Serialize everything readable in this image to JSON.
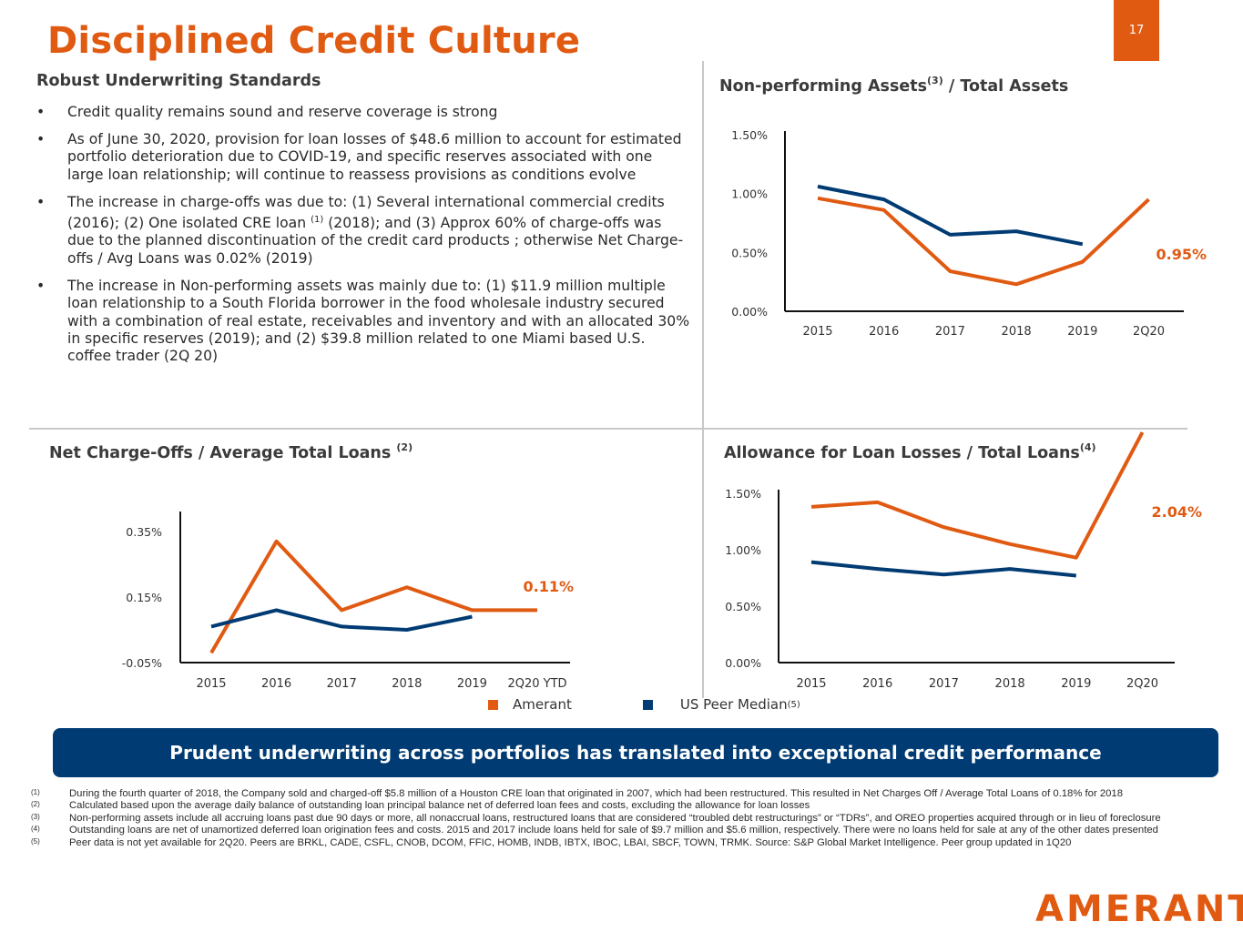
{
  "header": {
    "title": "Disciplined Credit Culture",
    "page_number": "17",
    "accent_color": "#e05a12"
  },
  "left_section": {
    "title": "Robust Underwriting Standards",
    "bullets": [
      {
        "text": "Credit quality remains sound and reserve coverage is strong"
      },
      {
        "text": "As of June 30, 2020, provision for loan losses of $48.6 million to account for estimated portfolio deterioration due to COVID-19, and specific reserves associated with one large loan relationship; will continue to reassess provisions as conditions evolve"
      },
      {
        "text_a": "The increase in charge-offs was due to: (1) Several international commercial credits (2016); (2) One isolated CRE loan",
        "sup": "(1)",
        "text_b": "(2018); and (3) Approx 60% of charge-offs was due to the planned discontinuation of the credit card products ; otherwise Net Charge-offs / Avg Loans was 0.02% (2019)"
      },
      {
        "text": "The increase in Non-performing assets was mainly due to: (1) $11.9 million multiple loan relationship to a South Florida borrower in the food wholesale industry secured with a combination of real estate, receivables and inventory and with an allocated 30% in specific reserves (2019); and (2) $39.8 million related to one Miami based U.S. coffee trader (2Q 20)"
      }
    ],
    "bullet_glyph": "•"
  },
  "chart_titles": {
    "npa": {
      "text": "Non-performing Assets",
      "sup": "(3)",
      "suffix": " / Total Assets"
    },
    "nco": {
      "text": "Net Charge-Offs / Average Total Loans",
      "sup": "(2)"
    },
    "all": {
      "text": "Allowance for Loan Losses / Total Loans",
      "sup": "(4)"
    }
  },
  "chart_data": [
    {
      "id": "npa",
      "type": "line",
      "categories": [
        "2015",
        "2016",
        "2017",
        "2018",
        "2019",
        "2Q20"
      ],
      "yticks": [
        "1.50%",
        "1.00%",
        "0.50%",
        "0.00%"
      ],
      "ylim": [
        0,
        1.5
      ],
      "series": [
        {
          "name": "Amerant",
          "color": "#e05a12",
          "values": [
            0.96,
            0.86,
            0.34,
            0.23,
            0.42,
            0.95
          ]
        },
        {
          "name": "US Peer Median",
          "color": "#003b73",
          "values": [
            1.06,
            0.95,
            0.65,
            0.68,
            0.57,
            null
          ]
        }
      ],
      "callout": "0.95%",
      "grid": false
    },
    {
      "id": "nco",
      "type": "line",
      "categories": [
        "2015",
        "2016",
        "2017",
        "2018",
        "2019",
        "2Q20 YTD"
      ],
      "yticks": [
        "0.35%",
        "0.15%",
        "-0.05%"
      ],
      "ylim": [
        -0.05,
        0.4
      ],
      "series": [
        {
          "name": "Amerant",
          "color": "#e05a12",
          "values": [
            -0.02,
            0.32,
            0.11,
            0.18,
            0.11,
            0.11
          ]
        },
        {
          "name": "US Peer Median",
          "color": "#003b73",
          "values": [
            0.06,
            0.11,
            0.06,
            0.05,
            0.09,
            null
          ]
        }
      ],
      "callout": "0.11%",
      "grid": false
    },
    {
      "id": "all",
      "type": "line",
      "categories": [
        "2015",
        "2016",
        "2017",
        "2018",
        "2019",
        "2Q20"
      ],
      "yticks": [
        "1.50%",
        "1.00%",
        "0.50%",
        "0.00%"
      ],
      "ylim": [
        0,
        1.5
      ],
      "series": [
        {
          "name": "Amerant",
          "color": "#e05a12",
          "values": [
            1.38,
            1.42,
            1.2,
            1.05,
            0.93,
            2.04
          ]
        },
        {
          "name": "US Peer Median",
          "color": "#003b73",
          "values": [
            0.89,
            0.83,
            0.78,
            0.83,
            0.77,
            null
          ]
        }
      ],
      "callout": "2.04%",
      "grid": false
    }
  ],
  "legend": {
    "amerant": {
      "label": "Amerant",
      "color": "#e05a12"
    },
    "peer": {
      "label": "US Peer Median",
      "sup": "(5)",
      "color": "#003b73"
    }
  },
  "banner": {
    "text": "Prudent underwriting across portfolios has translated into exceptional credit performance",
    "color": "#003b73"
  },
  "footnotes": [
    {
      "num": "(1)",
      "text": "During the fourth quarter of 2018, the Company sold and charged-off $5.8 million of a Houston CRE loan that originated in 2007, which had been restructured.  This resulted in Net Charges Off / Average Total Loans of 0.18% for 2018"
    },
    {
      "num": "(2)",
      "text": "Calculated based upon the average daily balance of outstanding loan principal balance net of deferred loan fees and costs, excluding the allowance for loan losses"
    },
    {
      "num": "(3)",
      "text": "Non-performing assets include all accruing loans past due 90 days or more, all nonaccrual loans, restructured loans that are considered “troubled debt restructurings” or “TDRs”, and OREO properties acquired through or in lieu of foreclosure"
    },
    {
      "num": "(4)",
      "text": "Outstanding loans are net of unamortized deferred loan origination fees and costs. 2015 and 2017 include loans held for sale of $9.7 million and $5.6 million, respectively. There were no loans held for sale at any of the other dates presented"
    },
    {
      "num": "(5)",
      "text": "Peer data is not yet available for 2Q20.  Peers are BRKL, CADE, CSFL, CNOB, DCOM, FFIC, HOMB, INDB, IBTX, IBOC, LBAI, SBCF, TOWN, TRMK. Source: S&P Global Market Intelligence.  Peer group updated in 1Q20"
    }
  ],
  "logo": {
    "text": "AMERANT",
    "color": "#e05a12"
  }
}
